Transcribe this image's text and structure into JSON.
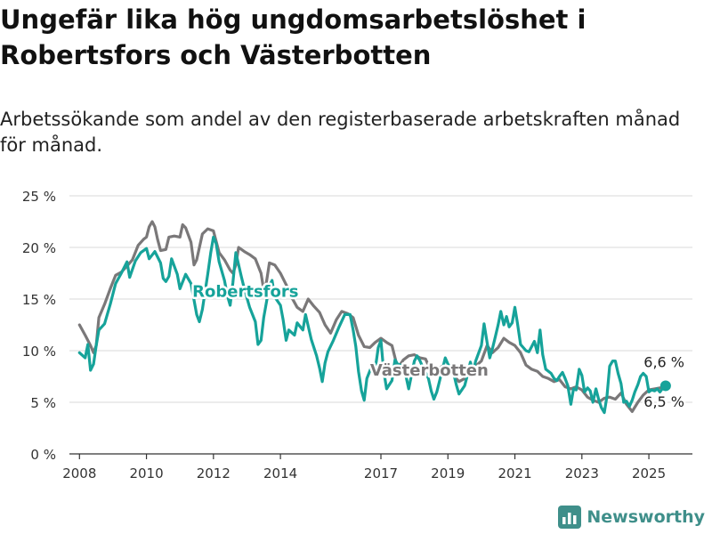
{
  "title": "Ungefär lika hög ungdomsarbetslöshet i Robertsfors och Västerbotten",
  "subtitle": "Arbetssökande som andel av den registerbaserade arbetskraften månad för månad.",
  "brand": "Newsworthy",
  "colors": {
    "robertsfors": "#16a39a",
    "vasterbotten": "#7a7879",
    "grid": "#d9d9d9",
    "axis": "#333333",
    "brand": "#3f8f8a"
  },
  "chart_data": {
    "type": "line",
    "title": "Ungefär lika hög ungdomsarbetslöshet i Robertsfors och Västerbotten",
    "xlabel": "",
    "ylabel": "",
    "ylim": [
      0,
      25
    ],
    "y_ticks": [
      "0 %",
      "5 %",
      "10 %",
      "15 %",
      "20 %",
      "25 %"
    ],
    "y_tick_values": [
      0,
      5,
      10,
      15,
      20,
      25
    ],
    "x_ticks": [
      "2008",
      "2010",
      "2012",
      "2014",
      "2017",
      "2019",
      "2021",
      "2023",
      "2025"
    ],
    "x_tick_values": [
      2008,
      2010,
      2012,
      2014,
      2017,
      2019,
      2021,
      2023,
      2025
    ],
    "xlim": [
      2007.7,
      2026.3
    ],
    "grid": "horizontal",
    "legend": "inline labels",
    "series": [
      {
        "name": "Robertsfors",
        "label_position": [
          2012.7,
          15.8
        ],
        "end_label": "6,6 %",
        "points": [
          [
            2008.0,
            9.8
          ],
          [
            2008.17,
            9.3
          ],
          [
            2008.25,
            10.6
          ],
          [
            2008.33,
            8.1
          ],
          [
            2008.42,
            8.7
          ],
          [
            2008.5,
            10.5
          ],
          [
            2008.58,
            12.0
          ],
          [
            2008.75,
            12.6
          ],
          [
            2008.92,
            14.5
          ],
          [
            2009.08,
            16.5
          ],
          [
            2009.25,
            17.5
          ],
          [
            2009.42,
            18.6
          ],
          [
            2009.5,
            17.1
          ],
          [
            2009.67,
            18.7
          ],
          [
            2009.83,
            19.5
          ],
          [
            2010.0,
            19.9
          ],
          [
            2010.08,
            18.9
          ],
          [
            2010.25,
            19.6
          ],
          [
            2010.42,
            18.5
          ],
          [
            2010.5,
            17.0
          ],
          [
            2010.58,
            16.7
          ],
          [
            2010.67,
            17.2
          ],
          [
            2010.75,
            18.9
          ],
          [
            2010.92,
            17.4
          ],
          [
            2011.0,
            16.0
          ],
          [
            2011.17,
            17.4
          ],
          [
            2011.33,
            16.5
          ],
          [
            2011.5,
            13.5
          ],
          [
            2011.58,
            12.8
          ],
          [
            2011.67,
            14.0
          ],
          [
            2011.83,
            17.4
          ],
          [
            2011.92,
            19.5
          ],
          [
            2012.0,
            21.0
          ],
          [
            2012.08,
            20.4
          ],
          [
            2012.17,
            18.6
          ],
          [
            2012.33,
            16.8
          ],
          [
            2012.42,
            15.3
          ],
          [
            2012.5,
            14.4
          ],
          [
            2012.58,
            16.6
          ],
          [
            2012.67,
            19.5
          ],
          [
            2012.83,
            17.2
          ],
          [
            2012.92,
            16.0
          ],
          [
            2013.08,
            14.2
          ],
          [
            2013.25,
            12.8
          ],
          [
            2013.33,
            10.6
          ],
          [
            2013.42,
            11.0
          ],
          [
            2013.5,
            13.2
          ],
          [
            2013.67,
            16.3
          ],
          [
            2013.75,
            16.8
          ],
          [
            2013.83,
            15.2
          ],
          [
            2014.0,
            14.4
          ],
          [
            2014.08,
            13.0
          ],
          [
            2014.17,
            11.0
          ],
          [
            2014.25,
            12.0
          ],
          [
            2014.42,
            11.5
          ],
          [
            2014.5,
            12.7
          ],
          [
            2014.67,
            12.0
          ],
          [
            2014.75,
            13.5
          ],
          [
            2014.92,
            11.1
          ],
          [
            2015.08,
            9.5
          ],
          [
            2015.17,
            8.3
          ],
          [
            2015.25,
            7.0
          ],
          [
            2015.33,
            8.8
          ],
          [
            2015.42,
            9.9
          ],
          [
            2015.58,
            11.0
          ],
          [
            2015.75,
            12.3
          ],
          [
            2015.92,
            13.5
          ],
          [
            2016.08,
            13.5
          ],
          [
            2016.17,
            12.0
          ],
          [
            2016.25,
            10.4
          ],
          [
            2016.33,
            8.0
          ],
          [
            2016.42,
            6.1
          ],
          [
            2016.5,
            5.2
          ],
          [
            2016.58,
            7.3
          ],
          [
            2016.75,
            8.7
          ],
          [
            2016.83,
            8.2
          ],
          [
            2016.92,
            10.3
          ],
          [
            2017.0,
            11.0
          ],
          [
            2017.08,
            8.1
          ],
          [
            2017.17,
            6.3
          ],
          [
            2017.33,
            7.1
          ],
          [
            2017.42,
            9.1
          ],
          [
            2017.5,
            8.7
          ],
          [
            2017.67,
            8.5
          ],
          [
            2017.75,
            7.5
          ],
          [
            2017.83,
            6.3
          ],
          [
            2018.0,
            9.0
          ],
          [
            2018.08,
            9.5
          ],
          [
            2018.17,
            9.0
          ],
          [
            2018.25,
            8.4
          ],
          [
            2018.33,
            7.9
          ],
          [
            2018.42,
            7.3
          ],
          [
            2018.5,
            6.1
          ],
          [
            2018.58,
            5.3
          ],
          [
            2018.67,
            6.0
          ],
          [
            2018.83,
            8.1
          ],
          [
            2018.92,
            9.3
          ],
          [
            2019.0,
            8.7
          ],
          [
            2019.17,
            7.8
          ],
          [
            2019.25,
            6.7
          ],
          [
            2019.33,
            5.8
          ],
          [
            2019.5,
            6.6
          ],
          [
            2019.58,
            7.6
          ],
          [
            2019.67,
            8.9
          ],
          [
            2019.75,
            8.0
          ],
          [
            2019.83,
            9.0
          ],
          [
            2020.0,
            10.5
          ],
          [
            2020.08,
            12.6
          ],
          [
            2020.17,
            10.8
          ],
          [
            2020.25,
            9.3
          ],
          [
            2020.33,
            10.2
          ],
          [
            2020.42,
            11.4
          ],
          [
            2020.5,
            12.5
          ],
          [
            2020.58,
            13.8
          ],
          [
            2020.67,
            12.5
          ],
          [
            2020.75,
            13.3
          ],
          [
            2020.83,
            12.3
          ],
          [
            2020.92,
            12.7
          ],
          [
            2021.0,
            14.2
          ],
          [
            2021.08,
            12.6
          ],
          [
            2021.17,
            10.6
          ],
          [
            2021.33,
            10.0
          ],
          [
            2021.42,
            9.9
          ],
          [
            2021.5,
            10.4
          ],
          [
            2021.58,
            10.9
          ],
          [
            2021.67,
            9.8
          ],
          [
            2021.75,
            12.0
          ],
          [
            2021.83,
            9.6
          ],
          [
            2021.92,
            8.2
          ],
          [
            2022.08,
            7.8
          ],
          [
            2022.17,
            7.3
          ],
          [
            2022.25,
            7.1
          ],
          [
            2022.33,
            7.5
          ],
          [
            2022.42,
            7.9
          ],
          [
            2022.5,
            7.3
          ],
          [
            2022.58,
            6.6
          ],
          [
            2022.67,
            4.8
          ],
          [
            2022.75,
            6.3
          ],
          [
            2022.83,
            6.2
          ],
          [
            2022.92,
            8.2
          ],
          [
            2023.0,
            7.6
          ],
          [
            2023.08,
            6.0
          ],
          [
            2023.17,
            6.4
          ],
          [
            2023.25,
            6.1
          ],
          [
            2023.33,
            5.0
          ],
          [
            2023.42,
            6.3
          ],
          [
            2023.5,
            5.3
          ],
          [
            2023.58,
            4.5
          ],
          [
            2023.67,
            4.0
          ],
          [
            2023.75,
            5.6
          ],
          [
            2023.83,
            8.5
          ],
          [
            2023.92,
            9.0
          ],
          [
            2024.0,
            9.0
          ],
          [
            2024.08,
            7.8
          ],
          [
            2024.17,
            6.8
          ],
          [
            2024.25,
            5.0
          ],
          [
            2024.33,
            5.1
          ],
          [
            2024.42,
            4.6
          ],
          [
            2024.5,
            5.2
          ],
          [
            2024.58,
            6.0
          ],
          [
            2024.67,
            6.7
          ],
          [
            2024.75,
            7.5
          ],
          [
            2024.83,
            7.8
          ],
          [
            2024.92,
            7.5
          ],
          [
            2025.0,
            6.0
          ],
          [
            2025.08,
            6.2
          ],
          [
            2025.17,
            6.1
          ],
          [
            2025.25,
            6.3
          ],
          [
            2025.33,
            6.0
          ],
          [
            2025.42,
            6.4
          ],
          [
            2025.5,
            6.6
          ]
        ]
      },
      {
        "name": "Västerbotten",
        "label_position": [
          2019.6,
          8.1
        ],
        "end_label": "6,5 %",
        "points": [
          [
            2008.0,
            12.5
          ],
          [
            2008.17,
            11.5
          ],
          [
            2008.33,
            10.5
          ],
          [
            2008.42,
            9.8
          ],
          [
            2008.5,
            10.5
          ],
          [
            2008.58,
            13.2
          ],
          [
            2008.75,
            14.5
          ],
          [
            2008.92,
            16.0
          ],
          [
            2009.08,
            17.3
          ],
          [
            2009.25,
            17.6
          ],
          [
            2009.42,
            18.2
          ],
          [
            2009.58,
            18.8
          ],
          [
            2009.75,
            20.2
          ],
          [
            2009.92,
            20.8
          ],
          [
            2010.0,
            21.0
          ],
          [
            2010.08,
            22.0
          ],
          [
            2010.17,
            22.5
          ],
          [
            2010.25,
            22.0
          ],
          [
            2010.33,
            20.8
          ],
          [
            2010.42,
            19.7
          ],
          [
            2010.58,
            19.8
          ],
          [
            2010.67,
            21.0
          ],
          [
            2010.83,
            21.1
          ],
          [
            2011.0,
            21.0
          ],
          [
            2011.08,
            22.2
          ],
          [
            2011.17,
            21.9
          ],
          [
            2011.33,
            20.5
          ],
          [
            2011.42,
            18.3
          ],
          [
            2011.5,
            18.8
          ],
          [
            2011.67,
            21.3
          ],
          [
            2011.83,
            21.8
          ],
          [
            2012.0,
            21.6
          ],
          [
            2012.17,
            19.5
          ],
          [
            2012.33,
            18.8
          ],
          [
            2012.5,
            17.8
          ],
          [
            2012.58,
            17.5
          ],
          [
            2012.67,
            18.3
          ],
          [
            2012.75,
            20.0
          ],
          [
            2012.92,
            19.6
          ],
          [
            2013.08,
            19.3
          ],
          [
            2013.25,
            18.9
          ],
          [
            2013.42,
            17.5
          ],
          [
            2013.5,
            15.9
          ],
          [
            2013.58,
            16.6
          ],
          [
            2013.67,
            18.5
          ],
          [
            2013.83,
            18.3
          ],
          [
            2014.0,
            17.5
          ],
          [
            2014.17,
            16.4
          ],
          [
            2014.33,
            15.2
          ],
          [
            2014.5,
            14.2
          ],
          [
            2014.67,
            13.8
          ],
          [
            2014.83,
            15.0
          ],
          [
            2015.0,
            14.3
          ],
          [
            2015.17,
            13.7
          ],
          [
            2015.33,
            12.5
          ],
          [
            2015.5,
            11.7
          ],
          [
            2015.67,
            13.0
          ],
          [
            2015.83,
            13.8
          ],
          [
            2016.0,
            13.6
          ],
          [
            2016.17,
            13.2
          ],
          [
            2016.33,
            11.5
          ],
          [
            2016.5,
            10.4
          ],
          [
            2016.67,
            10.3
          ],
          [
            2016.83,
            10.8
          ],
          [
            2017.0,
            11.2
          ],
          [
            2017.17,
            10.8
          ],
          [
            2017.33,
            10.5
          ],
          [
            2017.5,
            8.3
          ],
          [
            2017.67,
            9.1
          ],
          [
            2017.83,
            9.5
          ],
          [
            2018.0,
            9.6
          ],
          [
            2018.17,
            9.3
          ],
          [
            2018.33,
            9.2
          ],
          [
            2018.5,
            8.0
          ],
          [
            2018.67,
            8.1
          ],
          [
            2018.83,
            8.5
          ],
          [
            2019.0,
            8.3
          ],
          [
            2019.17,
            7.6
          ],
          [
            2019.33,
            7.0
          ],
          [
            2019.5,
            7.3
          ],
          [
            2019.67,
            8.0
          ],
          [
            2019.83,
            8.5
          ],
          [
            2020.0,
            9.0
          ],
          [
            2020.17,
            10.5
          ],
          [
            2020.33,
            9.8
          ],
          [
            2020.5,
            10.3
          ],
          [
            2020.67,
            11.2
          ],
          [
            2020.83,
            10.8
          ],
          [
            2021.0,
            10.5
          ],
          [
            2021.17,
            9.8
          ],
          [
            2021.33,
            8.6
          ],
          [
            2021.5,
            8.2
          ],
          [
            2021.67,
            8.0
          ],
          [
            2021.83,
            7.5
          ],
          [
            2022.0,
            7.3
          ],
          [
            2022.17,
            7.0
          ],
          [
            2022.33,
            7.2
          ],
          [
            2022.5,
            6.5
          ],
          [
            2022.67,
            6.3
          ],
          [
            2022.83,
            6.5
          ],
          [
            2023.0,
            6.2
          ],
          [
            2023.17,
            5.5
          ],
          [
            2023.33,
            5.2
          ],
          [
            2023.5,
            5.0
          ],
          [
            2023.67,
            5.4
          ],
          [
            2023.83,
            5.5
          ],
          [
            2024.0,
            5.3
          ],
          [
            2024.17,
            5.9
          ],
          [
            2024.33,
            4.8
          ],
          [
            2024.5,
            4.1
          ],
          [
            2024.67,
            5.0
          ],
          [
            2024.83,
            5.7
          ],
          [
            2025.0,
            6.2
          ],
          [
            2025.17,
            6.3
          ],
          [
            2025.33,
            6.4
          ],
          [
            2025.5,
            6.5
          ]
        ]
      }
    ]
  }
}
